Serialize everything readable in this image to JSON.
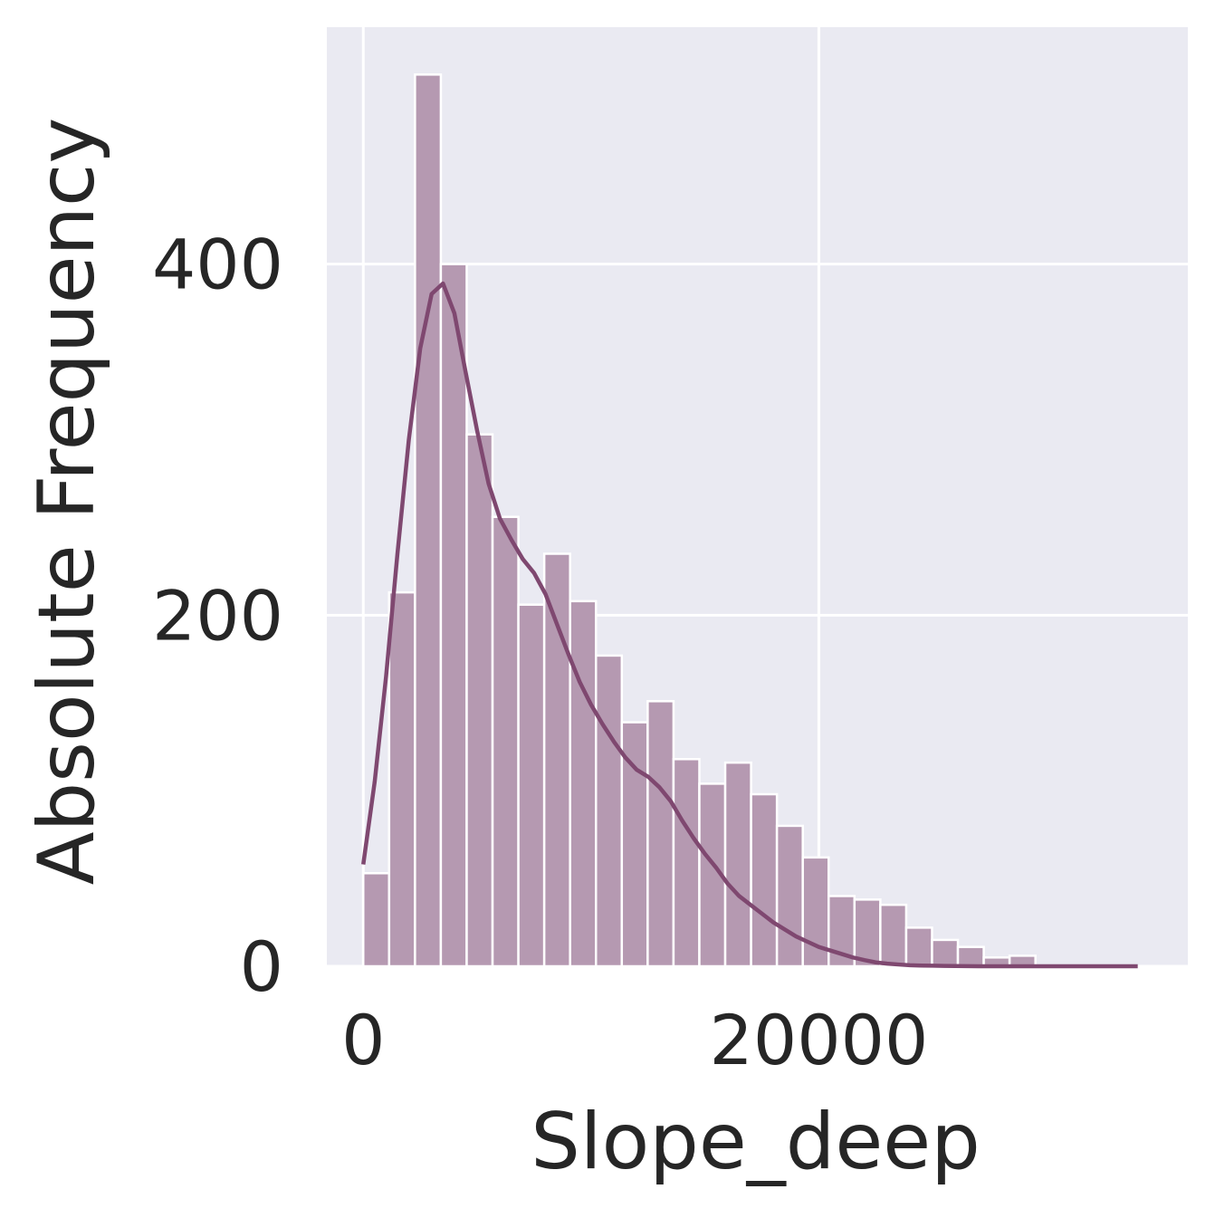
{
  "chart_data": {
    "type": "bar",
    "subtype": "histogram-with-kde",
    "xlabel": "Slope_deep",
    "ylabel": "Absolute Frequency",
    "xlim": [
      -1600,
      36200
    ],
    "ylim": [
      0,
      535
    ],
    "xticks": [
      0,
      20000
    ],
    "xtick_labels": [
      "0",
      "20000"
    ],
    "yticks": [
      0,
      200,
      400
    ],
    "ytick_labels": [
      "0",
      "200",
      "400"
    ],
    "grid": true,
    "bin_width": 1135,
    "bins_start": 0,
    "counts": [
      53,
      213,
      508,
      400,
      303,
      256,
      206,
      235,
      208,
      177,
      139,
      151,
      118,
      104,
      116,
      98,
      80,
      62,
      40,
      38,
      35,
      22,
      15,
      11,
      5,
      6,
      0,
      0,
      0,
      0
    ],
    "kde": {
      "x": [
        0,
        500,
        1000,
        1500,
        2000,
        2500,
        3000,
        3500,
        4000,
        4500,
        5000,
        5500,
        6000,
        6500,
        7000,
        7500,
        8000,
        8500,
        9000,
        9500,
        10000,
        10500,
        11000,
        11500,
        12000,
        12500,
        13000,
        13500,
        14000,
        14500,
        15000,
        15500,
        16000,
        16500,
        17000,
        17500,
        18000,
        18500,
        19000,
        19500,
        20000,
        20500,
        21000,
        21500,
        22000,
        22500,
        23000,
        23500,
        24000,
        24500,
        25000,
        25500,
        26000,
        26500,
        27000,
        27500,
        28000,
        28500,
        29000,
        29500,
        30000,
        30500,
        31000,
        31500,
        32000,
        32500,
        33000,
        33500,
        34000
      ],
      "y": [
        58,
        105,
        165,
        235,
        300,
        352,
        383,
        389,
        372,
        338,
        305,
        275,
        255,
        243,
        232,
        224,
        212,
        195,
        178,
        162,
        149,
        138,
        128,
        119,
        112,
        108,
        102,
        94,
        83,
        73,
        64,
        56,
        47,
        40,
        35,
        30,
        25,
        21,
        17,
        14,
        11,
        9,
        7,
        5,
        3.5,
        2.2,
        1.5,
        1.0,
        0.6,
        0.4,
        0.3,
        0.2,
        0.1,
        0.05,
        0,
        0,
        0,
        0,
        0,
        0,
        0,
        0,
        0,
        0,
        0,
        0,
        0,
        0,
        0
      ]
    },
    "colors": {
      "background": "#eaeaf2",
      "grid": "#ffffff",
      "bar_fill": "#b599b1",
      "bar_edge": "#ffffff",
      "kde_line": "#7f4870",
      "text": "#262626"
    }
  }
}
